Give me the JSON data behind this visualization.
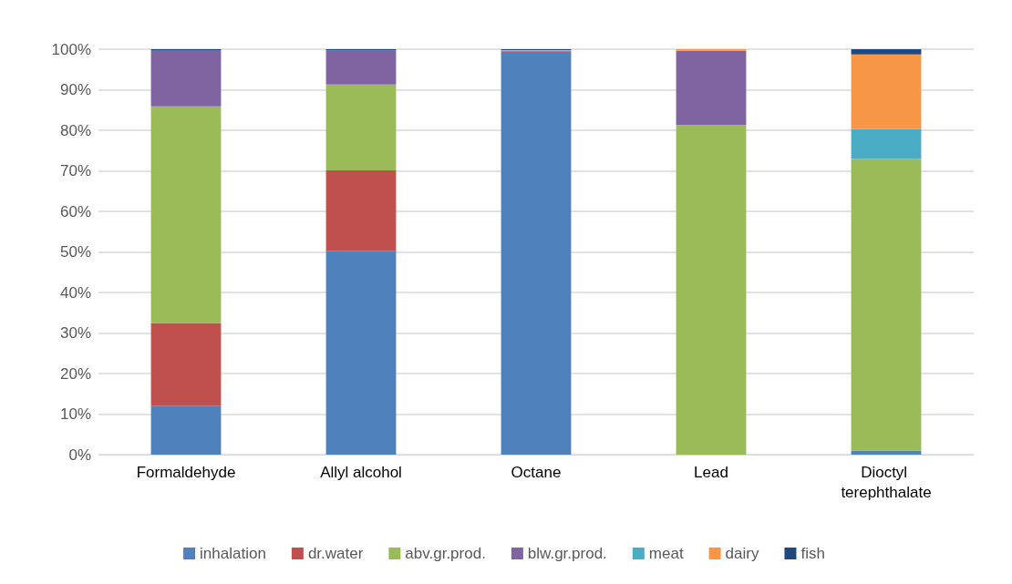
{
  "chart_data": {
    "type": "bar",
    "stacked": true,
    "categories": [
      "Formaldehyde",
      "Allyl alcohol",
      "Octane",
      "Lead",
      "Dioctyl terephthalate"
    ],
    "series": [
      {
        "name": "inhalation",
        "color": "#4f81bd",
        "values": [
          12.1,
          50.3,
          99.4,
          0,
          1.0
        ]
      },
      {
        "name": "dr.water",
        "color": "#c0504d",
        "values": [
          20.4,
          19.8,
          0.2,
          0,
          0
        ]
      },
      {
        "name": "abv.gr.prod.",
        "color": "#9bbb59",
        "values": [
          53.4,
          21.2,
          0,
          81.3,
          71.9
        ]
      },
      {
        "name": "blw.gr.prod.",
        "color": "#8064a2",
        "values": [
          13.9,
          8.4,
          0,
          18.3,
          0
        ]
      },
      {
        "name": "meat",
        "color": "#4bacc6",
        "values": [
          0,
          0,
          0,
          0,
          7.4
        ]
      },
      {
        "name": "dairy",
        "color": "#f79646",
        "values": [
          0,
          0,
          0.2,
          0.4,
          18.4
        ]
      },
      {
        "name": "fish",
        "color": "#1f497d",
        "values": [
          0.2,
          0.3,
          0.2,
          0,
          1.3
        ]
      }
    ],
    "ylim": [
      0,
      100
    ],
    "yticks": [
      {
        "value": 0,
        "label": "0%"
      },
      {
        "value": 10,
        "label": "10%"
      },
      {
        "value": 20,
        "label": "20%"
      },
      {
        "value": 30,
        "label": "30%"
      },
      {
        "value": 40,
        "label": "40%"
      },
      {
        "value": 50,
        "label": "50%"
      },
      {
        "value": 60,
        "label": "60%"
      },
      {
        "value": 70,
        "label": "70%"
      },
      {
        "value": 80,
        "label": "80%"
      },
      {
        "value": 90,
        "label": "90%"
      },
      {
        "value": 100,
        "label": "100%"
      }
    ],
    "grid": "y",
    "legend": "bottom"
  }
}
